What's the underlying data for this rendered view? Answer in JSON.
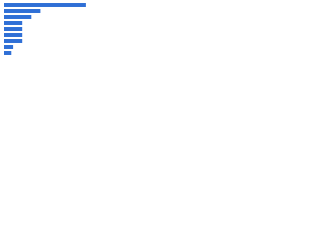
{
  "chart_data": {
    "type": "bar",
    "orientation": "horizontal",
    "categories": [
      null,
      null,
      null,
      null,
      null,
      null,
      null,
      null,
      null
    ],
    "values": [
      90,
      40,
      30,
      20,
      20,
      20,
      20,
      10,
      8
    ],
    "color": "#2f6fd6",
    "xlim": [
      0,
      100
    ]
  }
}
